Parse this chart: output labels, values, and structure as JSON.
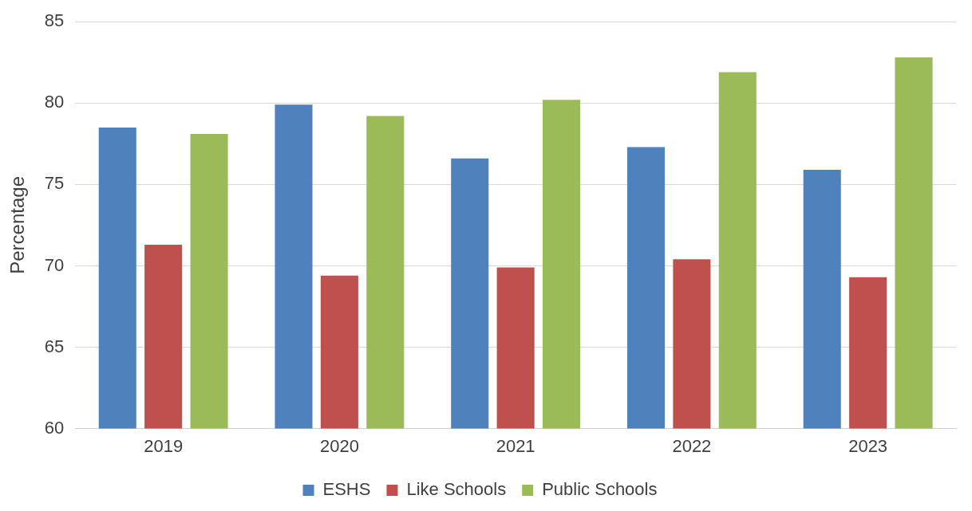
{
  "chart_data": {
    "type": "bar",
    "ylabel": "Percentage",
    "categories": [
      "2019",
      "2020",
      "2021",
      "2022",
      "2023"
    ],
    "series": [
      {
        "name": "ESHS",
        "color": "#4f81bd",
        "values": [
          78.5,
          79.9,
          76.6,
          77.3,
          75.9
        ]
      },
      {
        "name": "Like Schools",
        "color": "#c0504d",
        "values": [
          71.3,
          69.4,
          69.9,
          70.4,
          69.3
        ]
      },
      {
        "name": "Public Schools",
        "color": "#9bbb59",
        "values": [
          78.1,
          79.2,
          80.2,
          81.9,
          82.8
        ]
      }
    ],
    "ylim": [
      60,
      85
    ],
    "yticks": [
      60,
      65,
      70,
      75,
      80,
      85
    ],
    "grid": "y",
    "legend": "bottom"
  }
}
